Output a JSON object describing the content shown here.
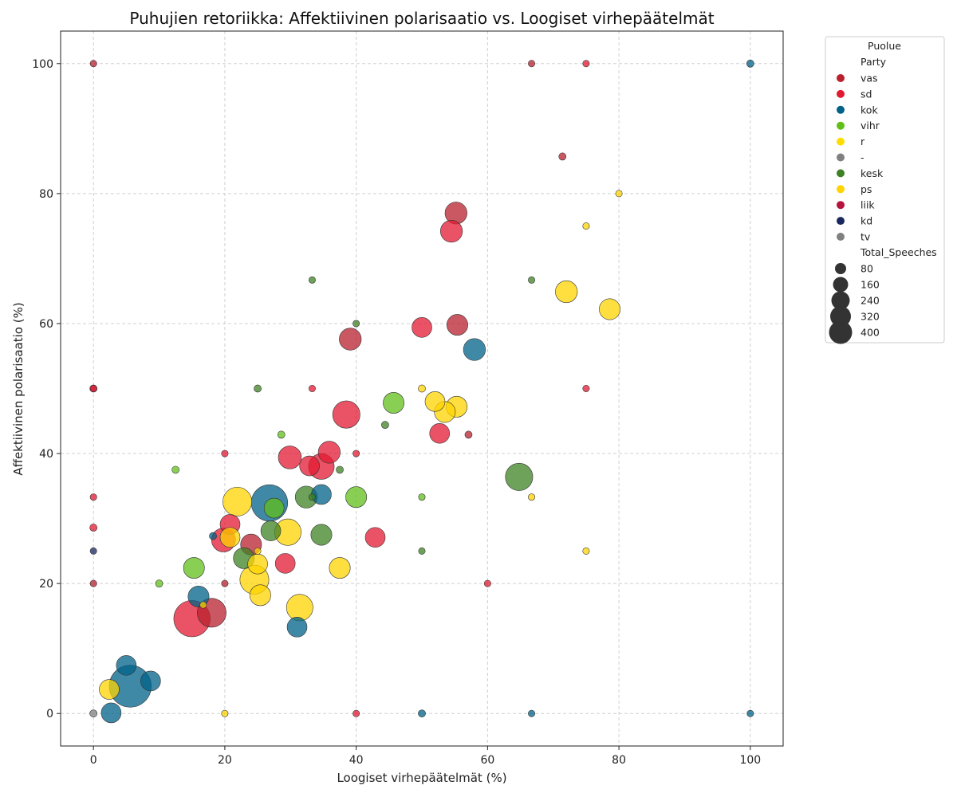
{
  "chart_data": {
    "type": "scatter",
    "title": "Puhujien retoriikka: Affektiivinen polarisaatio vs. Loogiset virhepäätelmät",
    "xlabel": "Loogiset virhepäätelmät (%)",
    "ylabel": "Affektiivinen polarisaatio (%)",
    "xlim": [
      -5,
      105
    ],
    "ylim": [
      -5,
      105
    ],
    "xticks": [
      "0",
      "20",
      "40",
      "60",
      "80",
      "100"
    ],
    "yticks": [
      "0",
      "20",
      "40",
      "60",
      "80",
      "100"
    ],
    "grid": true,
    "grid_style": "dashed",
    "legend": {
      "placement": "outside-right",
      "title": "Puolue",
      "hue_header": "Party",
      "size_header": "Total_Speeches",
      "parties": [
        {
          "name": "vas",
          "color": "#b8202e"
        },
        {
          "name": "sd",
          "color": "#e11931"
        },
        {
          "name": "kok",
          "color": "#006288"
        },
        {
          "name": "vihr",
          "color": "#61bf1a"
        },
        {
          "name": "r",
          "color": "#ffdd00"
        },
        {
          "name": "-",
          "color": "#808080"
        },
        {
          "name": "kesk",
          "color": "#3d8123"
        },
        {
          "name": "ps",
          "color": "#ffd400"
        },
        {
          "name": "liik",
          "color": "#b5123e"
        },
        {
          "name": "kd",
          "color": "#18275e"
        },
        {
          "name": "tv",
          "color": "#808080"
        }
      ],
      "sizes": [
        "80",
        "160",
        "240",
        "320",
        "400"
      ]
    },
    "series": [
      {
        "name": "vas",
        "color": "#b8202e",
        "points": [
          {
            "x": 0,
            "y": 100,
            "s": 5
          },
          {
            "x": 55.2,
            "y": 77,
            "s": 55
          },
          {
            "x": 55.4,
            "y": 59.8,
            "s": 50
          },
          {
            "x": 39.1,
            "y": 57.6,
            "s": 55
          },
          {
            "x": 18,
            "y": 15.5,
            "s": 95
          },
          {
            "x": 24,
            "y": 26,
            "s": 50
          },
          {
            "x": 20,
            "y": 20,
            "s": 5
          },
          {
            "x": 57.1,
            "y": 42.9,
            "s": 6
          },
          {
            "x": 0,
            "y": 20,
            "s": 5
          },
          {
            "x": 71.4,
            "y": 85.7,
            "s": 6
          },
          {
            "x": 66.7,
            "y": 100,
            "s": 5
          }
        ]
      },
      {
        "name": "sd",
        "color": "#e11931",
        "points": [
          {
            "x": 54.5,
            "y": 74.2,
            "s": 55
          },
          {
            "x": 50,
            "y": 59.4,
            "s": 45
          },
          {
            "x": 38.5,
            "y": 46,
            "s": 85
          },
          {
            "x": 52.7,
            "y": 43.1,
            "s": 45
          },
          {
            "x": 35.9,
            "y": 40.2,
            "s": 55
          },
          {
            "x": 29.9,
            "y": 39.4,
            "s": 60
          },
          {
            "x": 32.9,
            "y": 38.1,
            "s": 45
          },
          {
            "x": 34.7,
            "y": 38,
            "s": 75
          },
          {
            "x": 20.8,
            "y": 29.1,
            "s": 45
          },
          {
            "x": 42.9,
            "y": 27.1,
            "s": 45
          },
          {
            "x": 19.8,
            "y": 26.7,
            "s": 65
          },
          {
            "x": 29.2,
            "y": 23.1,
            "s": 45
          },
          {
            "x": 15,
            "y": 14.6,
            "s": 150
          },
          {
            "x": 0,
            "y": 50,
            "s": 5
          },
          {
            "x": 33.3,
            "y": 50,
            "s": 5
          },
          {
            "x": 75,
            "y": 50,
            "s": 5
          },
          {
            "x": 75,
            "y": 100,
            "s": 5
          },
          {
            "x": 0,
            "y": 33.3,
            "s": 5
          },
          {
            "x": 0,
            "y": 28.6,
            "s": 6
          },
          {
            "x": 20,
            "y": 40,
            "s": 5
          },
          {
            "x": 40,
            "y": 40,
            "s": 5
          },
          {
            "x": 60,
            "y": 20,
            "s": 5
          },
          {
            "x": 40,
            "y": 0,
            "s": 5
          }
        ]
      },
      {
        "name": "kok",
        "color": "#006288",
        "points": [
          {
            "x": 5.6,
            "y": 4.2,
            "s": 200
          },
          {
            "x": 26.8,
            "y": 32.4,
            "s": 150
          },
          {
            "x": 58,
            "y": 56,
            "s": 55
          },
          {
            "x": 34.7,
            "y": 33.7,
            "s": 45
          },
          {
            "x": 16,
            "y": 18,
            "s": 50
          },
          {
            "x": 31,
            "y": 13.3,
            "s": 45
          },
          {
            "x": 5,
            "y": 7.4,
            "s": 45
          },
          {
            "x": 8.7,
            "y": 5,
            "s": 45
          },
          {
            "x": 2.7,
            "y": 0.1,
            "s": 45
          },
          {
            "x": 18.2,
            "y": 27.3,
            "s": 6
          },
          {
            "x": 100,
            "y": 100,
            "s": 6
          },
          {
            "x": 66.7,
            "y": 0,
            "s": 5
          },
          {
            "x": 100,
            "y": 0,
            "s": 5
          },
          {
            "x": 50,
            "y": 0,
            "s": 6
          }
        ]
      },
      {
        "name": "vihr",
        "color": "#61bf1a",
        "points": [
          {
            "x": 45.7,
            "y": 47.8,
            "s": 50
          },
          {
            "x": 40,
            "y": 33.3,
            "s": 50
          },
          {
            "x": 27.5,
            "y": 31.6,
            "s": 45
          },
          {
            "x": 15.3,
            "y": 22.4,
            "s": 50
          },
          {
            "x": 12.5,
            "y": 37.5,
            "s": 6
          },
          {
            "x": 10,
            "y": 20,
            "s": 6
          },
          {
            "x": 28.6,
            "y": 42.9,
            "s": 6
          },
          {
            "x": 50,
            "y": 33.3,
            "s": 5
          }
        ]
      },
      {
        "name": "kesk",
        "color": "#3d8123",
        "points": [
          {
            "x": 64.8,
            "y": 36.4,
            "s": 85
          },
          {
            "x": 32.4,
            "y": 33.3,
            "s": 55
          },
          {
            "x": 27,
            "y": 28.1,
            "s": 45
          },
          {
            "x": 34.7,
            "y": 27.5,
            "s": 50
          },
          {
            "x": 22.9,
            "y": 23.9,
            "s": 50
          },
          {
            "x": 33.3,
            "y": 66.7,
            "s": 5
          },
          {
            "x": 40,
            "y": 60,
            "s": 5
          },
          {
            "x": 44.4,
            "y": 44.4,
            "s": 6
          },
          {
            "x": 25,
            "y": 50,
            "s": 6
          },
          {
            "x": 37.5,
            "y": 37.5,
            "s": 6
          },
          {
            "x": 33.3,
            "y": 33.3,
            "s": 5
          },
          {
            "x": 50,
            "y": 25,
            "s": 5
          },
          {
            "x": 66.7,
            "y": 66.7,
            "s": 5
          }
        ]
      },
      {
        "name": "ps",
        "color": "#ffd400",
        "points": [
          {
            "x": 72,
            "y": 64.9,
            "s": 55
          },
          {
            "x": 78.6,
            "y": 62.2,
            "s": 50
          },
          {
            "x": 52,
            "y": 48,
            "s": 45
          },
          {
            "x": 55.3,
            "y": 47.2,
            "s": 50
          },
          {
            "x": 53.5,
            "y": 46.4,
            "s": 50
          },
          {
            "x": 21.9,
            "y": 32.6,
            "s": 95
          },
          {
            "x": 29.6,
            "y": 27.9,
            "s": 80
          },
          {
            "x": 20.8,
            "y": 27.1,
            "s": 45
          },
          {
            "x": 24.5,
            "y": 20.6,
            "s": 95
          },
          {
            "x": 25,
            "y": 23,
            "s": 45
          },
          {
            "x": 37.5,
            "y": 22.4,
            "s": 50
          },
          {
            "x": 25.4,
            "y": 18.2,
            "s": 50
          },
          {
            "x": 31.4,
            "y": 16.3,
            "s": 80
          },
          {
            "x": 2.4,
            "y": 3.7,
            "s": 45
          },
          {
            "x": 80,
            "y": 80,
            "s": 5
          },
          {
            "x": 75,
            "y": 75,
            "s": 5
          },
          {
            "x": 50,
            "y": 50,
            "s": 6
          },
          {
            "x": 66.7,
            "y": 33.3,
            "s": 5
          },
          {
            "x": 75,
            "y": 25,
            "s": 5
          },
          {
            "x": 25,
            "y": 25,
            "s": 5
          },
          {
            "x": 16.7,
            "y": 16.7,
            "s": 5
          },
          {
            "x": 20,
            "y": 0,
            "s": 5
          }
        ]
      },
      {
        "name": "liik",
        "color": "#b5123e",
        "points": [
          {
            "x": 0,
            "y": 50,
            "s": 6
          }
        ]
      },
      {
        "name": "kd",
        "color": "#18275e",
        "points": [
          {
            "x": 0,
            "y": 25,
            "s": 5
          }
        ]
      },
      {
        "name": "-",
        "color": "#808080",
        "points": [
          {
            "x": 0,
            "y": 0,
            "s": 6
          }
        ]
      }
    ]
  }
}
